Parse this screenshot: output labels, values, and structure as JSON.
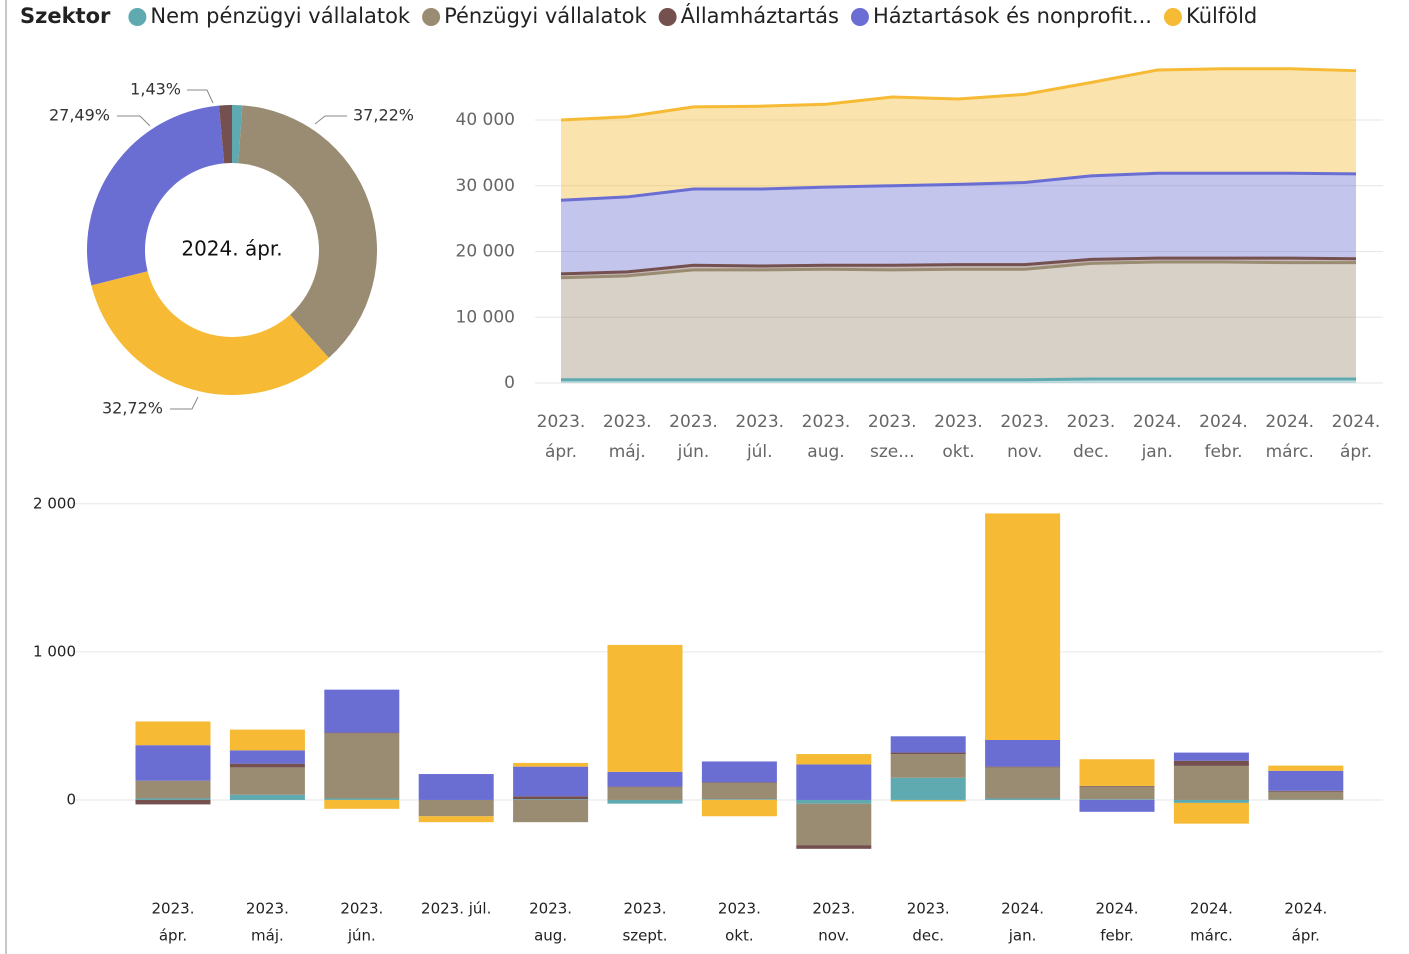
{
  "legend_title": "Szektor",
  "chart_data": [
    {
      "type": "pie",
      "center_label": "2024. ápr.",
      "values": [
        1.14,
        37.22,
        1.43,
        27.49,
        32.72
      ],
      "value_labels": [
        null,
        "37,22%",
        "1,43%",
        "27,49%",
        "32,72%"
      ],
      "colors": [
        "#5fa9b1",
        "#9a8c72",
        "#74504f",
        "#6a6ed3",
        "#f6ba34"
      ]
    },
    {
      "type": "area",
      "categories": [
        [
          "2023.",
          "ápr."
        ],
        [
          "2023.",
          "máj."
        ],
        [
          "2023.",
          "jún."
        ],
        [
          "2023.",
          "júl."
        ],
        [
          "2023.",
          "aug."
        ],
        [
          "2023.",
          "sze..."
        ],
        [
          "2023.",
          "okt."
        ],
        [
          "2023.",
          "nov."
        ],
        [
          "2023.",
          "dec."
        ],
        [
          "2024.",
          "jan."
        ],
        [
          "2024.",
          "febr."
        ],
        [
          "2024.",
          "márc."
        ],
        [
          "2024.",
          "ápr."
        ]
      ],
      "series": [
        {
          "name": "Nem pénzügyi vállalatok",
          "color": "#5fa9b1",
          "values": [
            500,
            500,
            500,
            500,
            500,
            500,
            500,
            500,
            600,
            600,
            600,
            600,
            600
          ]
        },
        {
          "name": "Pénzügyi vállalatok",
          "color": "#9a8c72",
          "values": [
            15500,
            15800,
            16700,
            16700,
            16800,
            16700,
            16800,
            16800,
            17600,
            17800,
            17800,
            17700,
            17700
          ]
        },
        {
          "name": "Államháztartás",
          "color": "#74504f",
          "values": [
            600,
            600,
            700,
            600,
            600,
            700,
            700,
            700,
            600,
            600,
            600,
            700,
            600
          ]
        },
        {
          "name": "Háztartások és nonprofit...",
          "color": "#6a6ed3",
          "values": [
            11200,
            11400,
            11600,
            11700,
            11900,
            12100,
            12200,
            12500,
            12700,
            12900,
            12900,
            12900,
            12900
          ]
        },
        {
          "name": "Külföld",
          "color": "#f6ba34",
          "values": [
            12200,
            12200,
            12500,
            12600,
            12600,
            13500,
            13000,
            13400,
            14200,
            15700,
            15900,
            15900,
            15700
          ]
        }
      ],
      "ylim": [
        0,
        40000
      ],
      "yticks": [
        0,
        {
          "value": 10000,
          "label": "10 000"
        },
        {
          "value": 20000,
          "label": "20 000"
        },
        {
          "value": 30000,
          "label": "30 000"
        },
        {
          "value": 40000,
          "label": "40 000"
        }
      ],
      "grid": true
    },
    {
      "type": "bar",
      "categories": [
        [
          "2023.",
          "ápr."
        ],
        [
          "2023.",
          "máj."
        ],
        [
          "2023.",
          "jún."
        ],
        [
          "2023. júl."
        ],
        [
          "2023.",
          "aug."
        ],
        [
          "2023.",
          "szept."
        ],
        [
          "2023.",
          "okt."
        ],
        [
          "2023.",
          "nov."
        ],
        [
          "2023.",
          "dec."
        ],
        [
          "2024.",
          "jan."
        ],
        [
          "2024.",
          "febr."
        ],
        [
          "2024.",
          "márc."
        ],
        [
          "2024.",
          "ápr."
        ]
      ],
      "series": [
        {
          "color": "#5fa9b1",
          "values": [
            10,
            35,
            10,
            0,
            5,
            -25,
            5,
            -25,
            150,
            10,
            5,
            -20,
            2
          ]
        },
        {
          "color": "#9a8c72",
          "values": [
            120,
            185,
            440,
            -110,
            -150,
            85,
            110,
            -280,
            160,
            210,
            85,
            230,
            55
          ]
        },
        {
          "color": "#74504f",
          "values": [
            -30,
            25,
            5,
            0,
            20,
            5,
            5,
            -25,
            10,
            5,
            5,
            35,
            5
          ]
        },
        {
          "color": "#6a6ed3",
          "values": [
            240,
            90,
            290,
            175,
            200,
            100,
            140,
            240,
            110,
            180,
            -80,
            55,
            135
          ]
        },
        {
          "color": "#f6ba34",
          "values": [
            160,
            140,
            -60,
            -40,
            25,
            857,
            -110,
            70,
            -10,
            1530,
            180,
            -140,
            35
          ]
        }
      ],
      "ylim": [
        -500,
        2100
      ],
      "yticks": [
        0,
        {
          "value": 1000,
          "label": "1 000"
        },
        {
          "value": 2000,
          "label": "2 000"
        }
      ],
      "grid": true
    }
  ]
}
